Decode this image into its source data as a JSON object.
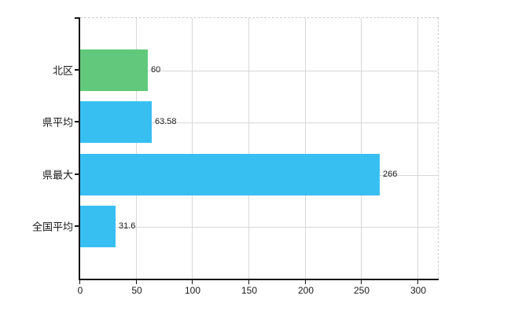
{
  "chart_data": {
    "type": "bar",
    "orientation": "horizontal",
    "title": "",
    "xlabel": "",
    "ylabel": "",
    "categories": [
      "北区",
      "県平均",
      "県最大",
      "全国平均"
    ],
    "values": [
      60,
      63.58,
      266,
      31.6
    ],
    "value_labels": [
      "60",
      "63.58",
      "266",
      "31.6"
    ],
    "bar_colors": [
      "#62c97c",
      "#38bff2",
      "#38bff2",
      "#38bff2"
    ],
    "x_ticks": [
      0,
      50,
      100,
      150,
      200,
      250,
      300
    ],
    "x_tick_labels": [
      "0",
      "50",
      "100",
      "150",
      "200",
      "250",
      "300"
    ],
    "xlim": [
      0,
      318
    ],
    "grid": true,
    "legend_position": "none",
    "colors": {
      "highlight_bar": "#62c97c",
      "default_bar": "#38bff2",
      "gridline": "#d8d8d8",
      "plot_border_dashed": "#cfcfcf",
      "axis": "#161616",
      "text": "#1a1a1a",
      "background": "#ffffff"
    }
  }
}
